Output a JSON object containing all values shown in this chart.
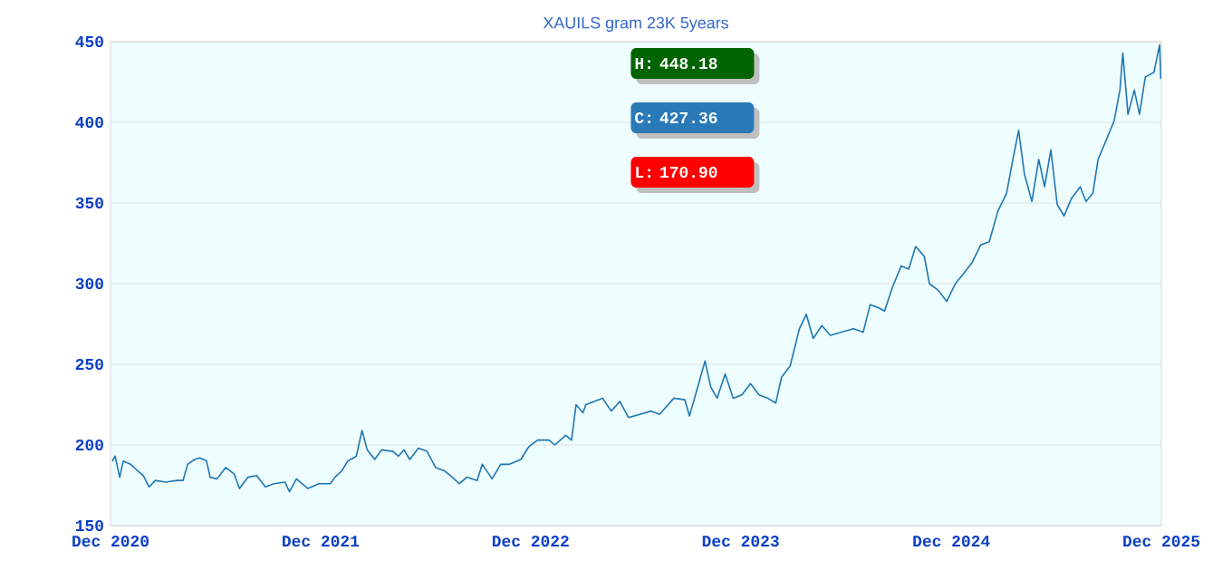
{
  "chart_data": {
    "type": "line",
    "title": "XAUILS gram 23K 5years",
    "annotations": [
      "H: 448.18",
      "C: 427.36",
      "L: 170.90"
    ],
    "xlim": [
      "2020-12-01",
      "2025-12-01"
    ],
    "xticks": [
      {
        "value": "2020-12-01",
        "label": "Dec 2020"
      },
      {
        "value": "2021-12-01",
        "label": "Dec 2021"
      },
      {
        "value": "2022-12-01",
        "label": "Dec 2022"
      },
      {
        "value": "2023-12-01",
        "label": "Dec 2023"
      },
      {
        "value": "2024-12-01",
        "label": "Dec 2024"
      },
      {
        "value": "2025-12-01",
        "label": "Dec 2025"
      }
    ],
    "ylim": [
      150,
      450
    ],
    "yticks": [
      150,
      200,
      250,
      300,
      350,
      400,
      450
    ],
    "grid": "y",
    "marker": "none",
    "line_style": "solid",
    "x": [
      "2020-12-04",
      "2020-12-09",
      "2020-12-17",
      "2020-12-23",
      "2021-01-05",
      "2021-01-17",
      "2021-01-27",
      "2021-02-06",
      "2021-02-17",
      "2021-03-07",
      "2021-03-27",
      "2021-04-06",
      "2021-04-14",
      "2021-04-26",
      "2021-05-05",
      "2021-05-17",
      "2021-05-23",
      "2021-06-04",
      "2021-06-19",
      "2021-07-04",
      "2021-07-13",
      "2021-07-28",
      "2021-08-12",
      "2021-08-27",
      "2021-09-11",
      "2021-09-30",
      "2021-10-08",
      "2021-10-20",
      "2021-11-09",
      "2021-11-28",
      "2021-12-18",
      "2021-12-26",
      "2022-01-07",
      "2022-01-17",
      "2022-02-01",
      "2022-02-11",
      "2022-02-20",
      "2022-03-05",
      "2022-03-17",
      "2022-04-06",
      "2022-04-15",
      "2022-04-25",
      "2022-05-05",
      "2022-05-20",
      "2022-06-04",
      "2022-06-19",
      "2022-07-04",
      "2022-07-18",
      "2022-07-30",
      "2022-08-12",
      "2022-08-30",
      "2022-09-08",
      "2022-09-25",
      "2022-10-10",
      "2022-10-25",
      "2022-11-14",
      "2022-11-28",
      "2022-12-13",
      "2023-01-02",
      "2023-01-12",
      "2023-01-31",
      "2023-02-10",
      "2023-02-18",
      "2023-03-02",
      "2023-03-07",
      "2023-04-05",
      "2023-04-20",
      "2023-05-05",
      "2023-05-20",
      "2023-06-09",
      "2023-06-28",
      "2023-07-13",
      "2023-08-07",
      "2023-08-26",
      "2023-09-03",
      "2023-09-15",
      "2023-09-30",
      "2023-10-10",
      "2023-10-21",
      "2023-11-04",
      "2023-11-18",
      "2023-12-03",
      "2023-12-18",
      "2024-01-02",
      "2024-01-17",
      "2024-01-31",
      "2024-02-10",
      "2024-02-25",
      "2024-03-12",
      "2024-03-24",
      "2024-04-05",
      "2024-04-20",
      "2024-05-05",
      "2024-05-24",
      "2024-06-14",
      "2024-07-01",
      "2024-07-13",
      "2024-07-28",
      "2024-08-07",
      "2024-08-21",
      "2024-09-05",
      "2024-09-18",
      "2024-09-30",
      "2024-10-15",
      "2024-10-24",
      "2024-11-08",
      "2024-11-23",
      "2024-12-08",
      "2024-12-22",
      "2025-01-06",
      "2025-01-21",
      "2025-02-05",
      "2025-02-20",
      "2025-03-07",
      "2025-03-18",
      "2025-03-28",
      "2025-04-07",
      "2025-04-20",
      "2025-05-02",
      "2025-05-12",
      "2025-05-23",
      "2025-06-03",
      "2025-06-15",
      "2025-06-28",
      "2025-07-13",
      "2025-07-23",
      "2025-08-04",
      "2025-08-13",
      "2025-08-26",
      "2025-09-10",
      "2025-09-20",
      "2025-09-25",
      "2025-10-04",
      "2025-10-15",
      "2025-10-24",
      "2025-11-03",
      "2025-11-18",
      "2025-11-28",
      "2025-11-30"
    ],
    "series": [
      {
        "color": "#1f77b4",
        "values": [
          190,
          193,
          180,
          190,
          188,
          184,
          181,
          174,
          178,
          177,
          178,
          178,
          188,
          191,
          192,
          190,
          180,
          179,
          186,
          182,
          173,
          180,
          181,
          174,
          176,
          177,
          171,
          179,
          173,
          176,
          176,
          180,
          184,
          190,
          193,
          209,
          197,
          191,
          197,
          196,
          193,
          197,
          191,
          198,
          196,
          186,
          184,
          180,
          176,
          180,
          178,
          188,
          179,
          188,
          188,
          191,
          199,
          203,
          203,
          200,
          206,
          203,
          225,
          220,
          225,
          229,
          221,
          227,
          217,
          219,
          221,
          219,
          229,
          228,
          218,
          233,
          252,
          236,
          229,
          244,
          229,
          231,
          238,
          231,
          229,
          226,
          242,
          249,
          272,
          281,
          266,
          274,
          268,
          270,
          272,
          270,
          287,
          285,
          283,
          298,
          311,
          309,
          323,
          317,
          300,
          296,
          289,
          300,
          306,
          313,
          324,
          326,
          345,
          356,
          377,
          395,
          368,
          351,
          377,
          360,
          383,
          349,
          342,
          353,
          360,
          351,
          356,
          377,
          388,
          401,
          420,
          443,
          405,
          420,
          405,
          428,
          431,
          448,
          427
        ]
      }
    ]
  }
}
